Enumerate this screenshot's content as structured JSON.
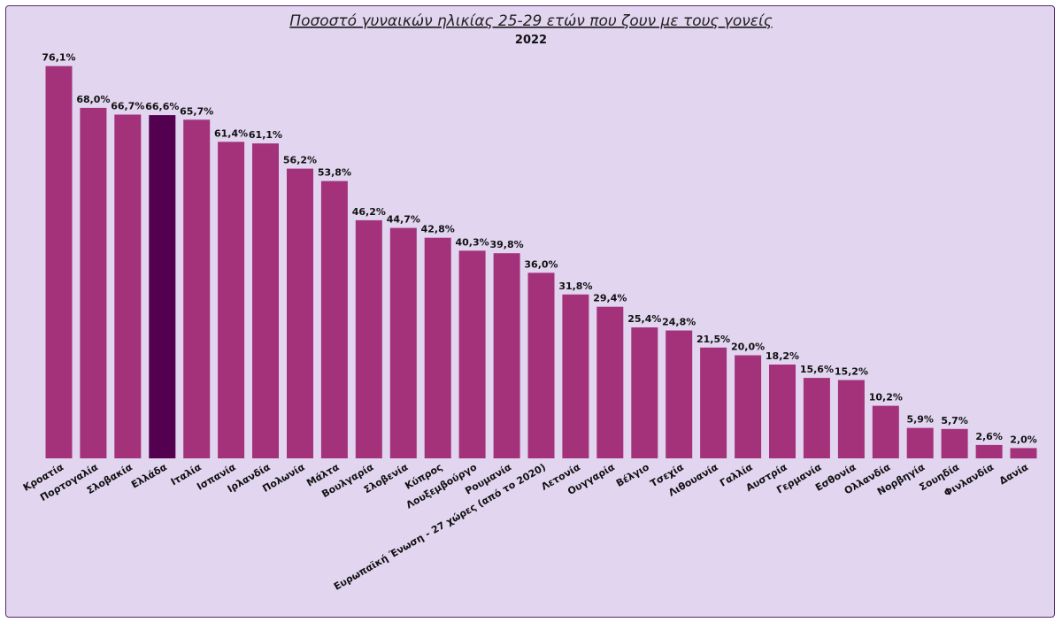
{
  "chart_data": {
    "type": "bar",
    "title": "Ποσοστό γυναικών ηλικίας 25-29 ετών που ζουν με τους γονείς",
    "subtitle": "2022",
    "xlabel": "",
    "ylabel": "",
    "ylim": [
      0,
      80
    ],
    "grid": false,
    "legend": "none",
    "value_suffix": "%",
    "decimal_separator": ",",
    "colors": {
      "default": "#a3327a",
      "highlight": "#530051",
      "background": "#e1d5f0",
      "border": "#5a2a6e"
    },
    "highlight_category": "Ελλάδα",
    "categories": [
      "Κροατία",
      "Πορτογαλία",
      "Σλοβακία",
      "Ελλάδα",
      "Ιταλία",
      "Ισπανία",
      "Ιρλανδία",
      "Πολωνία",
      "Μάλτα",
      "Βουλγαρία",
      "Σλοβενία",
      "Κύπρος",
      "Λουξεμβούργο",
      "Ρουμανία",
      "Ευρωπαϊκή Ένωση - 27 χώρες (από το 2020)",
      "Λετονία",
      "Ουγγαρία",
      "Βέλγιο",
      "Τσεχία",
      "Λιθουανία",
      "Γαλλία",
      "Αυστρία",
      "Γερμανία",
      "Εσθονία",
      "Ολλανδία",
      "Νορβηγία",
      "Σουηδία",
      "Φινλανδία",
      "Δανία"
    ],
    "values": [
      76.1,
      68.0,
      66.7,
      66.6,
      65.7,
      61.4,
      61.1,
      56.2,
      53.8,
      46.2,
      44.7,
      42.8,
      40.3,
      39.8,
      36.0,
      31.8,
      29.4,
      25.4,
      24.8,
      21.5,
      20.0,
      18.2,
      15.6,
      15.2,
      10.2,
      5.9,
      5.7,
      2.6,
      2.0
    ]
  }
}
